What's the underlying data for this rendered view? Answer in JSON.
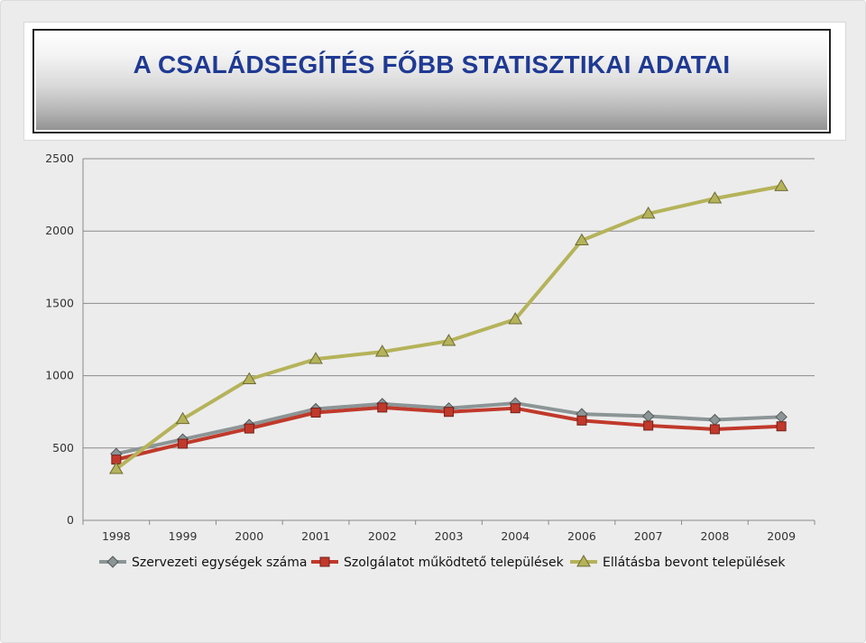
{
  "slide": {
    "title": "A CSALÁDSEGÍTÉS FŐBB STATISZTIKAI ADATAI"
  },
  "chart_data": {
    "type": "line",
    "categories": [
      "1998",
      "1999",
      "2000",
      "2001",
      "2002",
      "2003",
      "2004",
      "2006",
      "2007",
      "2008",
      "2009"
    ],
    "ylim": [
      0,
      2500
    ],
    "yticks": [
      0,
      500,
      1000,
      1500,
      2000,
      2500
    ],
    "grid": true,
    "legend_position": "bottom",
    "series": [
      {
        "name": "Szervezeti egységek száma",
        "values": [
          460,
          560,
          660,
          770,
          805,
          775,
          810,
          735,
          720,
          695,
          715
        ],
        "color": "#8c9596",
        "marker": "diamond"
      },
      {
        "name": "Szolgálatot működtető települések",
        "values": [
          420,
          530,
          635,
          745,
          780,
          750,
          775,
          690,
          655,
          630,
          650
        ],
        "color": "#c0392b",
        "marker": "square"
      },
      {
        "name": "Ellátásba bevont települések",
        "values": [
          355,
          700,
          975,
          1115,
          1165,
          1240,
          1390,
          1935,
          2120,
          2225,
          2310
        ],
        "color": "#b5b35a",
        "marker": "triangle"
      }
    ]
  }
}
